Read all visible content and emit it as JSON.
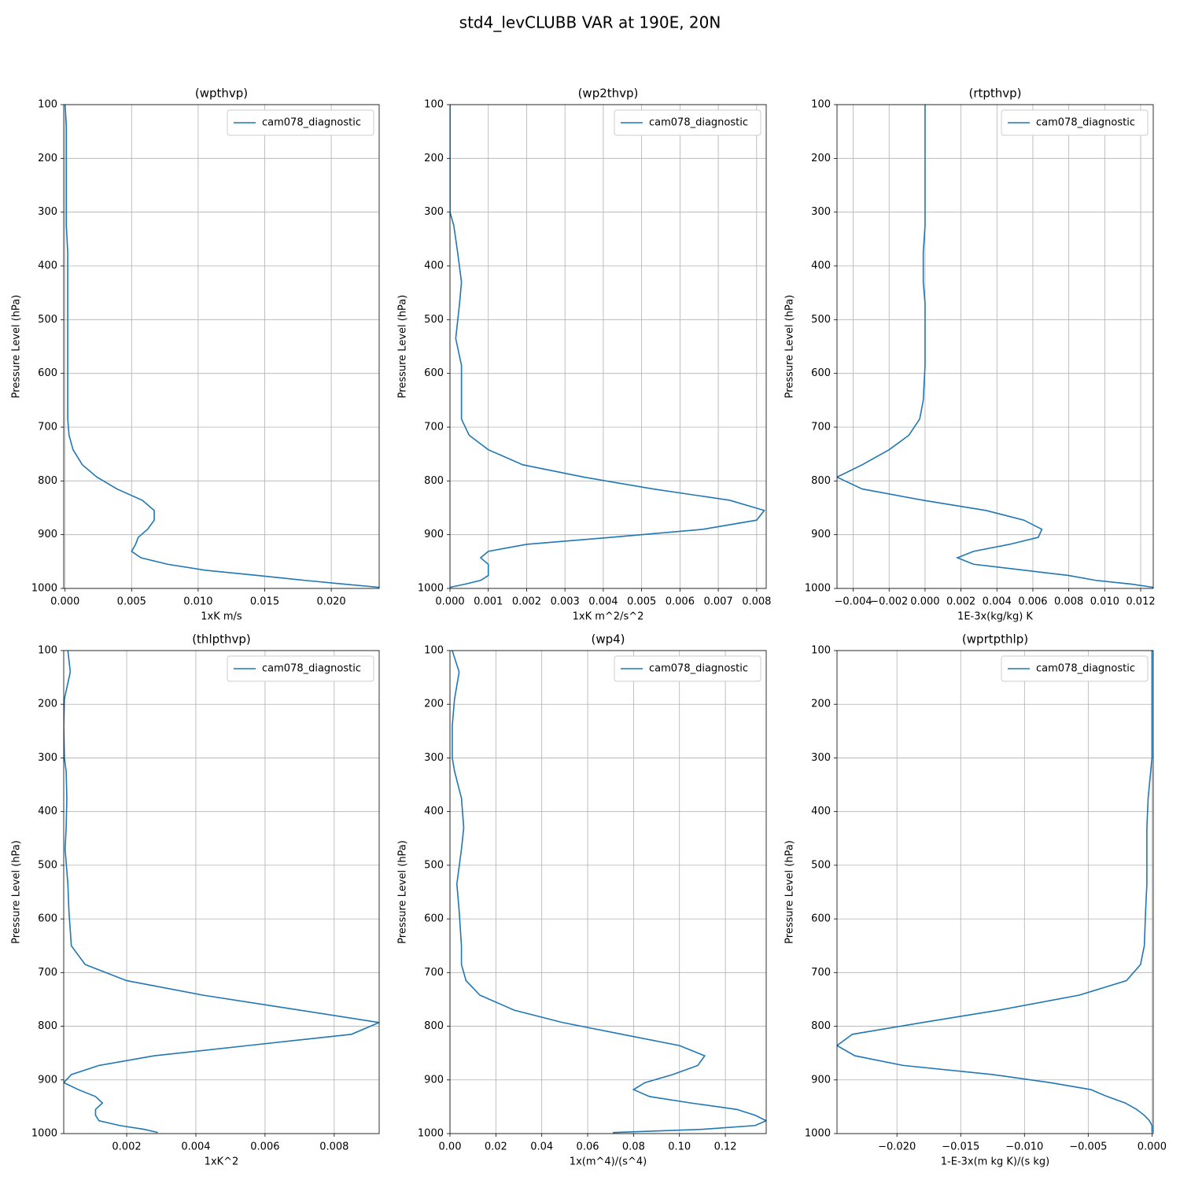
{
  "title": "std4_levCLUBB VAR at 190E, 20N",
  "chart_data": [
    {
      "type": "line",
      "title": "(wpthvp)",
      "xlabel": "1xK m/s",
      "ylabel": "Pressure Level (hPa)",
      "xlim": [
        -0.0001,
        0.0236
      ],
      "xticks": [
        {
          "value": 0,
          "label": "0.000"
        },
        {
          "value": 0.005,
          "label": "0.005"
        },
        {
          "value": 0.01,
          "label": "0.010"
        },
        {
          "value": 0.015,
          "label": "0.015"
        },
        {
          "value": 0.02,
          "label": "0.020"
        }
      ],
      "ylim": [
        1000,
        100
      ],
      "yticks": [
        100,
        200,
        300,
        400,
        500,
        600,
        700,
        800,
        900,
        1000
      ],
      "grid": true,
      "legend": "upper right",
      "y": [
        100,
        140,
        190,
        240,
        300,
        325,
        375,
        430,
        470,
        535,
        585,
        650,
        685,
        715,
        742,
        770,
        793,
        815,
        836,
        855,
        873,
        890,
        905,
        918,
        931,
        943,
        955,
        966,
        976,
        985,
        992,
        998
      ],
      "series": [
        {
          "name": "cam078_diagnostic",
          "color": "#1f77b4",
          "values": [
            0,
            0.0001,
            0.0001,
            0.0001,
            0.0001,
            0.0001,
            0.0002,
            0.0002,
            0.0002,
            0.0002,
            0.0002,
            0.0002,
            0.0002,
            0.0003,
            0.0006,
            0.0013,
            0.0024,
            0.0039,
            0.0058,
            0.0067,
            0.0067,
            0.0062,
            0.0055,
            0.0053,
            0.005,
            0.0057,
            0.0077,
            0.0105,
            0.0145,
            0.018,
            0.021,
            0.0236
          ]
        }
      ]
    },
    {
      "type": "line",
      "title": "(wp2thvp)",
      "xlabel": "1xK m^2/s^2",
      "ylabel": "Pressure Level (hPa)",
      "xlim": [
        0,
        0.00825
      ],
      "xticks": [
        {
          "value": 0,
          "label": "0.000"
        },
        {
          "value": 0.001,
          "label": "0.001"
        },
        {
          "value": 0.002,
          "label": "0.002"
        },
        {
          "value": 0.003,
          "label": "0.003"
        },
        {
          "value": 0.004,
          "label": "0.004"
        },
        {
          "value": 0.005,
          "label": "0.005"
        },
        {
          "value": 0.006,
          "label": "0.006"
        },
        {
          "value": 0.007,
          "label": "0.007"
        },
        {
          "value": 0.008,
          "label": "0.008"
        }
      ],
      "ylim": [
        1000,
        100
      ],
      "yticks": [
        100,
        200,
        300,
        400,
        500,
        600,
        700,
        800,
        900,
        1000
      ],
      "grid": true,
      "legend": "upper right",
      "y": [
        100,
        140,
        190,
        240,
        300,
        325,
        375,
        430,
        470,
        535,
        585,
        650,
        685,
        715,
        742,
        770,
        793,
        815,
        836,
        855,
        873,
        890,
        905,
        918,
        931,
        943,
        955,
        966,
        976,
        985,
        992,
        998
      ],
      "series": [
        {
          "name": "cam078_diagnostic",
          "color": "#1f77b4",
          "values": [
            0,
            0,
            0,
            0,
            0,
            0.0001,
            0.0002,
            0.0003,
            0.00025,
            0.00015,
            0.0003,
            0.0003,
            0.0003,
            0.0005,
            0.001,
            0.0019,
            0.0035,
            0.0053,
            0.0073,
            0.0082,
            0.008,
            0.0066,
            0.0042,
            0.002,
            0.001,
            0.0008,
            0.001,
            0.001,
            0.001,
            0.0008,
            0.0004,
            0
          ]
        }
      ]
    },
    {
      "type": "line",
      "title": "(rtpthvp)",
      "xlabel": "1E-3x(kg/kg) K",
      "ylabel": "Pressure Level (hPa)",
      "xlim": [
        -0.0049,
        0.0127
      ],
      "xticks": [
        {
          "value": -0.004,
          "label": "−0.004"
        },
        {
          "value": -0.002,
          "label": "−0.002"
        },
        {
          "value": 0,
          "label": "0.000"
        },
        {
          "value": 0.002,
          "label": "0.002"
        },
        {
          "value": 0.004,
          "label": "0.004"
        },
        {
          "value": 0.006,
          "label": "0.006"
        },
        {
          "value": 0.008,
          "label": "0.008"
        },
        {
          "value": 0.01,
          "label": "0.010"
        },
        {
          "value": 0.012,
          "label": "0.012"
        }
      ],
      "ylim": [
        1000,
        100
      ],
      "yticks": [
        100,
        200,
        300,
        400,
        500,
        600,
        700,
        800,
        900,
        1000
      ],
      "grid": true,
      "legend": "upper right",
      "y": [
        100,
        140,
        190,
        240,
        300,
        325,
        375,
        430,
        470,
        535,
        585,
        650,
        685,
        715,
        742,
        770,
        793,
        815,
        836,
        855,
        873,
        890,
        905,
        918,
        931,
        943,
        955,
        966,
        976,
        985,
        992,
        998
      ],
      "series": [
        {
          "name": "cam078_diagnostic",
          "color": "#1f77b4",
          "values": [
            0,
            0,
            0,
            0,
            0,
            0,
            -0.0001,
            -0.0001,
            0,
            0,
            0,
            -0.0001,
            -0.0003,
            -0.0009,
            -0.002,
            -0.0035,
            -0.0049,
            -0.0035,
            -0.0001,
            0.0034,
            0.0055,
            0.0065,
            0.0063,
            0.0047,
            0.0027,
            0.0018,
            0.0027,
            0.0055,
            0.008,
            0.0095,
            0.0115,
            0.0127
          ]
        }
      ]
    },
    {
      "type": "line",
      "title": "(thlpthvp)",
      "xlabel": "1xK^2",
      "ylabel": "Pressure Level (hPa)",
      "xlim": [
        0.00018,
        0.0093
      ],
      "xticks": [
        0.002,
        0.004,
        0.006,
        0.008
      ],
      "ylim": [
        1000,
        100
      ],
      "yticks": [
        100,
        200,
        300,
        400,
        500,
        600,
        700,
        800,
        900,
        1000
      ],
      "grid": true,
      "legend": "upper right",
      "y": [
        100,
        140,
        190,
        240,
        300,
        325,
        375,
        430,
        470,
        535,
        585,
        650,
        685,
        715,
        742,
        770,
        793,
        815,
        836,
        855,
        873,
        890,
        905,
        918,
        931,
        943,
        955,
        966,
        976,
        985,
        992,
        998
      ],
      "series": [
        {
          "name": "cam078_diagnostic",
          "color": "#1f77b4",
          "values": [
            0.0003,
            0.00037,
            0.0002,
            0.00018,
            0.0002,
            0.00025,
            0.00027,
            0.00025,
            0.00022,
            0.0003,
            0.00033,
            0.0004,
            0.0008,
            0.002,
            0.0042,
            0.007,
            0.0093,
            0.0085,
            0.0055,
            0.0028,
            0.0012,
            0.0004,
            0.00018,
            0.0006,
            0.0011,
            0.0013,
            0.0011,
            0.0011,
            0.0012,
            0.0018,
            0.0025,
            0.0029
          ]
        }
      ]
    },
    {
      "type": "line",
      "title": "(wp4)",
      "xlabel": "1x(m^4)/(s^4)",
      "ylabel": "Pressure Level (hPa)",
      "xlim": [
        0,
        0.1378
      ],
      "xticks": [
        {
          "value": 0,
          "label": "0.00"
        },
        {
          "value": 0.02,
          "label": "0.02"
        },
        {
          "value": 0.04,
          "label": "0.04"
        },
        {
          "value": 0.06,
          "label": "0.06"
        },
        {
          "value": 0.08,
          "label": "0.08"
        },
        {
          "value": 0.1,
          "label": "0.10"
        },
        {
          "value": 0.12,
          "label": "0.12"
        }
      ],
      "ylim": [
        1000,
        100
      ],
      "yticks": [
        100,
        200,
        300,
        400,
        500,
        600,
        700,
        800,
        900,
        1000
      ],
      "grid": true,
      "legend": "upper right",
      "y": [
        100,
        140,
        190,
        240,
        300,
        325,
        375,
        430,
        470,
        535,
        585,
        650,
        685,
        715,
        742,
        770,
        793,
        815,
        836,
        855,
        873,
        890,
        905,
        918,
        931,
        943,
        955,
        966,
        976,
        985,
        992,
        998
      ],
      "series": [
        {
          "name": "cam078_diagnostic",
          "color": "#1f77b4",
          "values": [
            0.001,
            0.004,
            0.002,
            0.001,
            0.001,
            0.002,
            0.005,
            0.006,
            0.005,
            0.003,
            0.004,
            0.005,
            0.005,
            0.007,
            0.013,
            0.028,
            0.049,
            0.075,
            0.1,
            0.111,
            0.108,
            0.097,
            0.085,
            0.08,
            0.087,
            0.105,
            0.125,
            0.133,
            0.1378,
            0.133,
            0.11,
            0.071
          ]
        }
      ]
    },
    {
      "type": "line",
      "title": "(wprtpthlp)",
      "xlabel": "1-E-3x(m kg K)/(s kg)",
      "ylabel": "Pressure Level (hPa)",
      "xlim": [
        -0.0247,
        0.0001
      ],
      "xticks": [
        {
          "value": -0.02,
          "label": "−0.020"
        },
        {
          "value": -0.015,
          "label": "−0.015"
        },
        {
          "value": -0.01,
          "label": "−0.010"
        },
        {
          "value": -0.005,
          "label": "−0.005"
        },
        {
          "value": 0,
          "label": "0.000"
        }
      ],
      "ylim": [
        1000,
        100
      ],
      "yticks": [
        100,
        200,
        300,
        400,
        500,
        600,
        700,
        800,
        900,
        1000
      ],
      "grid": true,
      "legend": "upper right",
      "y": [
        100,
        140,
        190,
        240,
        300,
        325,
        375,
        430,
        470,
        535,
        585,
        650,
        685,
        715,
        742,
        770,
        793,
        815,
        836,
        855,
        873,
        890,
        905,
        918,
        931,
        943,
        955,
        966,
        976,
        985,
        992,
        998
      ],
      "series": [
        {
          "name": "cam078_diagnostic",
          "color": "#1f77b4",
          "values": [
            0,
            0,
            0,
            0,
            0,
            -0.0001,
            -0.0003,
            -0.0004,
            -0.0004,
            -0.0004,
            -0.0005,
            -0.0006,
            -0.0009,
            -0.002,
            -0.0057,
            -0.012,
            -0.018,
            -0.0235,
            -0.0247,
            -0.0233,
            -0.0195,
            -0.0125,
            -0.008,
            -0.0048,
            -0.0035,
            -0.0021,
            -0.0012,
            -0.0006,
            -0.0002,
            0,
            0,
            0
          ]
        }
      ]
    }
  ]
}
